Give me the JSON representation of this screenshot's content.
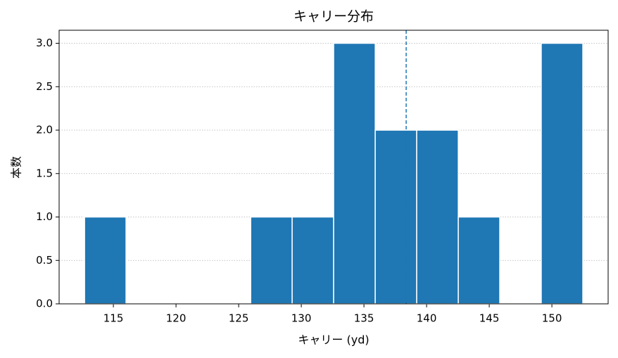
{
  "chart_data": {
    "type": "histogram",
    "title": "キャリー分布",
    "x_label": "キャリー (yd)",
    "y_label": "本数",
    "bins": [
      112.7,
      116.01,
      119.33,
      122.64,
      125.96,
      129.27,
      132.58,
      135.9,
      139.21,
      142.53,
      145.84,
      149.15,
      152.47
    ],
    "values": [
      1,
      0,
      0,
      0,
      1,
      1,
      3,
      2,
      2,
      1,
      0,
      3
    ],
    "color": "#1f77b4",
    "reference_line": 138.37,
    "xlim": [
      110.67,
      154.49
    ],
    "xticks": [
      115,
      120,
      125,
      130,
      135,
      140,
      145,
      150
    ],
    "ylim": [
      0,
      3.15
    ],
    "yticks": [
      {
        "value": 0,
        "label": "0.0"
      },
      {
        "value": 0.5,
        "label": "0.5"
      },
      {
        "value": 1,
        "label": "1.0"
      },
      {
        "value": 1.5,
        "label": "1.5"
      },
      {
        "value": 2,
        "label": "2.0"
      },
      {
        "value": 2.5,
        "label": "2.5"
      },
      {
        "value": 3,
        "label": "3.0"
      }
    ],
    "grid": true
  }
}
